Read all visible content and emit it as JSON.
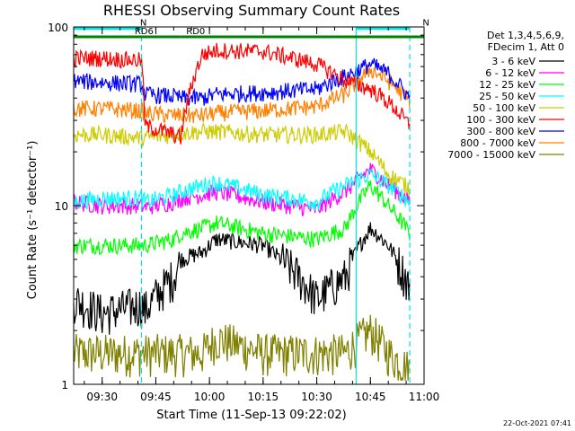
{
  "chart_data": {
    "type": "line",
    "title": "RHESSI Observing Summary Count Rates",
    "xlabel": "Start Time (11-Sep-13 09:22:02)",
    "ylabel": "Count Rate (s⁻¹ detector⁻¹)",
    "y_scale": "log",
    "ylim": [
      1,
      100
    ],
    "xlim": [
      "09:22:02",
      "11:00:00"
    ],
    "x_ticks": [
      "09:30",
      "09:45",
      "10:00",
      "10:15",
      "10:30",
      "10:45",
      "11:00"
    ],
    "y_ticks": [
      "1",
      "10",
      "100"
    ],
    "legend_position": "right",
    "legend_header": [
      "Det 1,3,4,5,6,9,",
      "FDecim 1, Att 0"
    ],
    "timestamp": "22-Oct-2021 07:41",
    "flags": [
      {
        "name": "N",
        "color": "#00e5e5",
        "start": "09:22",
        "end": "09:41",
        "level": 98
      },
      {
        "name": "N",
        "color": "#00e5e5",
        "start": "10:41",
        "end": "10:56",
        "level": 98
      },
      {
        "name": "RD6",
        "color": "#008000",
        "start": "09:22",
        "end": "09:52",
        "level": 88
      },
      {
        "name": "RD0",
        "color": "#008000",
        "start": "09:52",
        "end": "11:00",
        "level": 88
      }
    ],
    "markers": [
      {
        "type": "solid",
        "color": "#00e5e5",
        "time": "10:41"
      },
      {
        "type": "dashed",
        "color": "#00e5e5",
        "time": "09:41"
      },
      {
        "type": "dashed",
        "color": "#00e5e5",
        "time": "10:56"
      }
    ],
    "x": [
      "09:22",
      "09:30",
      "09:41",
      "09:42",
      "09:50",
      "09:52",
      "09:58",
      "10:02",
      "10:15",
      "10:30",
      "10:38",
      "10:45",
      "10:50",
      "10:56"
    ],
    "series": [
      {
        "name": "3 - 6 keV",
        "color": "#000000",
        "values": [
          3.0,
          2.5,
          2.8,
          2.6,
          4.0,
          5.0,
          5.5,
          6.5,
          6.0,
          3.0,
          4.0,
          7.5,
          6.0,
          3.5
        ]
      },
      {
        "name": "6 - 12 keV",
        "color": "#ff00ff",
        "values": [
          10.5,
          10.0,
          10.0,
          9.8,
          10.5,
          11.0,
          11.5,
          12.0,
          10.5,
          9.5,
          12.0,
          16.0,
          13.0,
          10.5
        ]
      },
      {
        "name": "12 - 25 keV",
        "color": "#00ff00",
        "values": [
          6.0,
          6.0,
          6.0,
          6.0,
          6.5,
          7.0,
          7.5,
          8.0,
          7.0,
          6.5,
          7.5,
          13.0,
          10.0,
          7.0
        ]
      },
      {
        "name": "25 - 50 keV",
        "color": "#00ffff",
        "values": [
          10.5,
          11.0,
          11.0,
          10.5,
          11.5,
          12.0,
          13.0,
          13.5,
          11.5,
          10.5,
          13.0,
          15.0,
          13.0,
          10.5
        ]
      },
      {
        "name": "50 - 100 keV",
        "color": "#cccc00",
        "values": [
          25.0,
          25.0,
          24.0,
          24.0,
          25.0,
          25.5,
          26.0,
          26.0,
          25.0,
          25.0,
          26.0,
          20.0,
          15.0,
          12.5
        ]
      },
      {
        "name": "100 - 300 keV",
        "color": "#ff0000",
        "values": [
          67.0,
          67.0,
          65.0,
          28.0,
          25.0,
          24.0,
          70.0,
          74.0,
          73.0,
          62.0,
          50.0,
          45.0,
          38.0,
          28.0
        ]
      },
      {
        "name": "300 - 800 keV",
        "color": "#0000ff",
        "values": [
          50.0,
          49.0,
          48.0,
          42.0,
          41.0,
          40.0,
          40.0,
          42.0,
          43.0,
          45.0,
          53.0,
          62.0,
          55.0,
          40.0
        ]
      },
      {
        "name": "800 - 7000 keV",
        "color": "#ff8000",
        "values": [
          35.0,
          35.0,
          34.0,
          33.0,
          32.0,
          32.0,
          32.0,
          33.0,
          34.0,
          36.0,
          42.0,
          58.0,
          50.0,
          38.0
        ]
      },
      {
        "name": "7000 - 15000 keV",
        "color": "#808000",
        "values": [
          1.5,
          1.5,
          1.5,
          1.5,
          1.5,
          1.5,
          1.5,
          1.8,
          1.5,
          1.5,
          1.5,
          2.0,
          1.5,
          1.2
        ]
      }
    ]
  }
}
